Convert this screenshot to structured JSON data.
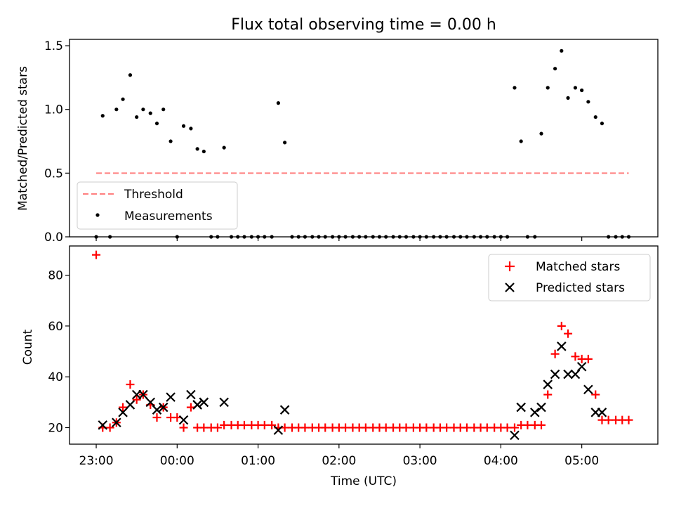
{
  "figure": {
    "title": "Flux total observing time = 0.00 h",
    "x_axis_label": "Time (UTC)",
    "x_tick_labels": [
      "23:00",
      "00:00",
      "01:00",
      "02:00",
      "03:00",
      "04:00",
      "05:00"
    ]
  },
  "chart_data": [
    {
      "type": "scatter",
      "ylabel": "Matched/Predicted stars",
      "xlabel": "",
      "x_units": "hours since 23:00 UTC",
      "xlim": [
        -0.33,
        6.94
      ],
      "ylim": [
        0,
        1.55
      ],
      "y_ticks": [
        0.0,
        0.5,
        1.0,
        1.5
      ],
      "y_tick_labels": [
        "0.0",
        "0.5",
        "1.0",
        "1.5"
      ],
      "legend_location": "lower-left",
      "legend": [
        "Threshold",
        "Measurements"
      ],
      "threshold": {
        "name": "Threshold",
        "value": 0.5,
        "x_range": [
          0,
          6.58
        ],
        "color": "#ff7f7f",
        "style": "dashed"
      },
      "series": [
        {
          "name": "Measurements",
          "color": "#000000",
          "x": [
            0.0,
            0.08,
            0.17,
            0.25,
            0.33,
            0.42,
            0.5,
            0.58,
            0.67,
            0.75,
            0.83,
            0.92,
            1.0,
            1.08,
            1.17,
            1.25,
            1.33,
            1.42,
            1.5,
            1.58,
            1.67,
            1.75,
            1.83,
            1.92,
            2.0,
            2.08,
            2.17,
            2.25,
            2.33,
            2.42,
            2.5,
            2.58,
            2.67,
            2.75,
            2.83,
            2.92,
            3.0,
            3.08,
            3.17,
            3.25,
            3.33,
            3.42,
            3.5,
            3.58,
            3.67,
            3.75,
            3.83,
            3.92,
            4.0,
            4.08,
            4.17,
            4.25,
            4.33,
            4.42,
            4.5,
            4.58,
            4.67,
            4.75,
            4.83,
            4.92,
            5.0,
            5.08,
            5.17,
            5.25,
            5.33,
            5.42,
            5.5,
            5.58,
            5.67,
            5.75,
            5.83,
            5.92,
            6.0,
            6.08,
            6.17,
            6.25,
            6.33,
            6.42,
            6.5,
            6.58
          ],
          "y": [
            0.0,
            0.95,
            0.0,
            1.0,
            1.08,
            1.27,
            0.94,
            1.0,
            0.97,
            0.89,
            1.0,
            0.75,
            0.0,
            0.87,
            0.85,
            0.69,
            0.67,
            0.0,
            0.0,
            0.7,
            0.0,
            0.0,
            0.0,
            0.0,
            0.0,
            0.0,
            0.0,
            1.05,
            0.74,
            0.0,
            0.0,
            0.0,
            0.0,
            0.0,
            0.0,
            0.0,
            0.0,
            0.0,
            0.0,
            0.0,
            0.0,
            0.0,
            0.0,
            0.0,
            0.0,
            0.0,
            0.0,
            0.0,
            0.0,
            0.0,
            0.0,
            0.0,
            0.0,
            0.0,
            0.0,
            0.0,
            0.0,
            0.0,
            0.0,
            0.0,
            0.0,
            0.0,
            1.17,
            0.75,
            0.0,
            0.0,
            0.81,
            1.17,
            1.32,
            1.46,
            1.09,
            1.17,
            1.15,
            1.06,
            0.94,
            0.89,
            0.0,
            0.0,
            0.0,
            0.0
          ]
        }
      ]
    },
    {
      "type": "scatter",
      "ylabel": "Count",
      "xlabel": "Time (UTC)",
      "x_units": "hours since 23:00 UTC",
      "xlim": [
        -0.33,
        6.94
      ],
      "ylim": [
        13.5,
        91.5
      ],
      "y_ticks": [
        20,
        40,
        60,
        80
      ],
      "y_tick_labels": [
        "20",
        "40",
        "60",
        "80"
      ],
      "legend_location": "upper-right",
      "legend": [
        "Matched stars",
        "Predicted stars"
      ],
      "series": [
        {
          "name": "Matched stars",
          "marker": "+",
          "color": "#ff0000",
          "x": [
            0.0,
            0.08,
            0.17,
            0.25,
            0.33,
            0.42,
            0.5,
            0.58,
            0.67,
            0.75,
            0.83,
            0.92,
            1.0,
            1.08,
            1.17,
            1.25,
            1.33,
            1.42,
            1.5,
            1.58,
            1.67,
            1.75,
            1.83,
            1.92,
            2.0,
            2.08,
            2.17,
            2.25,
            2.33,
            2.42,
            2.5,
            2.58,
            2.67,
            2.75,
            2.83,
            2.92,
            3.0,
            3.08,
            3.17,
            3.25,
            3.33,
            3.42,
            3.5,
            3.58,
            3.67,
            3.75,
            3.83,
            3.92,
            4.0,
            4.08,
            4.17,
            4.25,
            4.33,
            4.42,
            4.5,
            4.58,
            4.67,
            4.75,
            4.83,
            4.92,
            5.0,
            5.08,
            5.17,
            5.25,
            5.33,
            5.42,
            5.5,
            5.58,
            5.67,
            5.75,
            5.83,
            5.92,
            6.0,
            6.08,
            6.17,
            6.25,
            6.33,
            6.42,
            6.5,
            6.58
          ],
          "y": [
            88,
            20,
            20,
            22,
            28,
            37,
            31,
            33,
            29,
            24,
            28,
            24,
            24,
            20,
            28,
            20,
            20,
            20,
            20,
            21,
            21,
            21,
            21,
            21,
            21,
            21,
            21,
            20,
            20,
            20,
            20,
            20,
            20,
            20,
            20,
            20,
            20,
            20,
            20,
            20,
            20,
            20,
            20,
            20,
            20,
            20,
            20,
            20,
            20,
            20,
            20,
            20,
            20,
            20,
            20,
            20,
            20,
            20,
            20,
            20,
            20,
            20,
            20,
            21,
            21,
            21,
            21,
            33,
            49,
            60,
            57,
            48,
            47,
            47,
            33,
            23,
            23,
            23,
            23,
            23
          ]
        },
        {
          "name": "Predicted stars",
          "marker": "x",
          "color": "#000000",
          "x": [
            0.08,
            0.25,
            0.33,
            0.42,
            0.5,
            0.58,
            0.67,
            0.75,
            0.83,
            0.92,
            1.08,
            1.17,
            1.25,
            1.33,
            1.58,
            1.25,
            1.33,
            2.25,
            2.33,
            5.17,
            5.25,
            5.42,
            5.5,
            5.58,
            5.67,
            5.75,
            5.83,
            5.92,
            6.0,
            6.08,
            6.17,
            6.25
          ],
          "y": [
            21,
            22,
            26,
            29,
            33,
            33,
            30,
            27,
            28,
            32,
            23,
            33,
            29,
            30,
            30,
            29,
            30,
            19,
            27,
            17,
            28,
            26,
            28,
            37,
            41,
            52,
            41,
            41,
            44,
            35,
            26,
            26
          ]
        }
      ]
    }
  ]
}
